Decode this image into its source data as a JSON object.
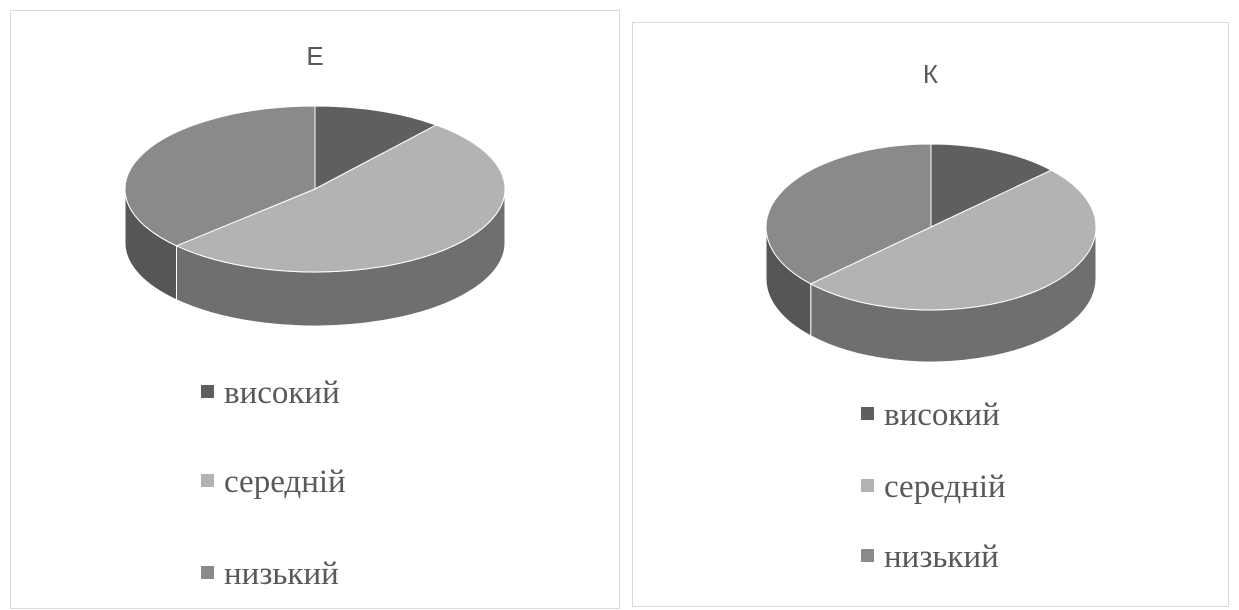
{
  "chart_data": [
    {
      "type": "pie",
      "title": "Е",
      "categories": [
        "високий",
        "середній",
        "низький"
      ],
      "values": [
        11,
        52,
        37
      ],
      "colors": [
        "#5f5f5f",
        "#b3b3b3",
        "#8a8a8a"
      ],
      "legend_position": "bottom",
      "style": "3d"
    },
    {
      "type": "pie",
      "title": "К",
      "categories": [
        "високий",
        "середній",
        "низький"
      ],
      "values": [
        13,
        50,
        37
      ],
      "colors": [
        "#5f5f5f",
        "#b3b3b3",
        "#8a8a8a"
      ],
      "legend_position": "bottom",
      "style": "3d"
    }
  ]
}
